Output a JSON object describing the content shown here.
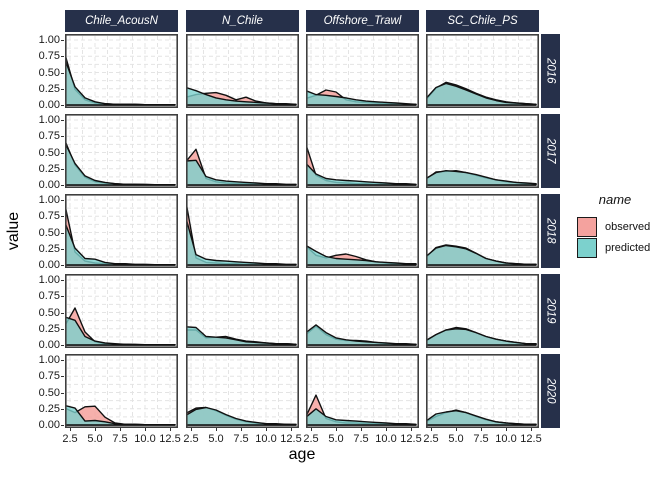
{
  "chart_data": {
    "type": "area",
    "title": "",
    "xlabel": "age",
    "ylabel": "value",
    "facet_cols": [
      "Chile_AcousN",
      "N_Chile",
      "Offshore_Trawl",
      "SC_Chile_PS"
    ],
    "facet_rows": [
      "2016",
      "2017",
      "2018",
      "2019",
      "2020"
    ],
    "x_tick_labels": [
      "2.5",
      "5.0",
      "7.5",
      "10.0",
      "12.5"
    ],
    "x_tick_values": [
      2.5,
      5.0,
      7.5,
      10.0,
      12.5
    ],
    "y_tick_labels": [
      "0.00",
      "0.25",
      "0.50",
      "0.75",
      "1.00"
    ],
    "y_tick_values": [
      0,
      0.25,
      0.5,
      0.75,
      1.0
    ],
    "xlim": [
      2,
      13.1
    ],
    "ylim": [
      0,
      1.0
    ],
    "grid": {
      "style": "dashed",
      "major_and_minor": true
    },
    "legend": {
      "title": "name",
      "position": "right",
      "entries": [
        {
          "label": "observed",
          "color": "#F4A29E"
        },
        {
          "label": "predicted",
          "color": "#7CD1CD"
        }
      ]
    },
    "colors": {
      "strip_bg": "#26304A",
      "strip_text": "#FFFFFF",
      "panel_border": "#3F3F3F",
      "grid_line": "#E4E4E4",
      "outline": "#111111"
    },
    "ages": [
      2,
      3,
      4,
      5,
      6,
      7,
      8,
      9,
      10,
      11,
      12,
      13
    ],
    "panels": [
      {
        "row": "2016",
        "col": "Chile_AcousN",
        "observed": [
          0.78,
          0.24,
          0.08,
          0.03,
          0.02,
          0.01,
          0.01,
          0.01,
          0.005,
          0.005,
          0.005,
          0.005
        ],
        "predicted": [
          0.7,
          0.28,
          0.11,
          0.05,
          0.02,
          0.01,
          0.01,
          0.01,
          0.005,
          0.005,
          0.005,
          0.005
        ]
      },
      {
        "row": "2016",
        "col": "N_Chile",
        "observed": [
          0.12,
          0.16,
          0.18,
          0.19,
          0.15,
          0.08,
          0.12,
          0.06,
          0.03,
          0.02,
          0.01,
          0.01
        ],
        "predicted": [
          0.27,
          0.22,
          0.16,
          0.11,
          0.08,
          0.06,
          0.05,
          0.04,
          0.03,
          0.02,
          0.02,
          0.01
        ]
      },
      {
        "row": "2016",
        "col": "Offshore_Trawl",
        "observed": [
          0.1,
          0.15,
          0.23,
          0.2,
          0.08,
          0.05,
          0.04,
          0.03,
          0.02,
          0.02,
          0.01,
          0.01
        ],
        "predicted": [
          0.22,
          0.16,
          0.15,
          0.13,
          0.11,
          0.08,
          0.06,
          0.05,
          0.04,
          0.03,
          0.02,
          0.01
        ]
      },
      {
        "row": "2016",
        "col": "SC_Chile_PS",
        "observed": [
          0.08,
          0.26,
          0.35,
          0.31,
          0.25,
          0.18,
          0.12,
          0.08,
          0.05,
          0.03,
          0.02,
          0.01
        ],
        "predicted": [
          0.1,
          0.27,
          0.33,
          0.29,
          0.23,
          0.17,
          0.11,
          0.07,
          0.04,
          0.03,
          0.02,
          0.01
        ]
      },
      {
        "row": "2017",
        "col": "Chile_AcousN",
        "observed": [
          0.68,
          0.31,
          0.12,
          0.05,
          0.03,
          0.02,
          0.01,
          0.01,
          0.005,
          0.005,
          0.005,
          0.005
        ],
        "predicted": [
          0.65,
          0.33,
          0.14,
          0.07,
          0.04,
          0.02,
          0.01,
          0.01,
          0.01,
          0.005,
          0.005,
          0.005
        ]
      },
      {
        "row": "2017",
        "col": "N_Chile",
        "observed": [
          0.36,
          0.55,
          0.1,
          0.05,
          0.03,
          0.02,
          0.02,
          0.01,
          0.01,
          0.01,
          0.005,
          0.005
        ],
        "predicted": [
          0.37,
          0.38,
          0.13,
          0.08,
          0.06,
          0.05,
          0.04,
          0.03,
          0.02,
          0.02,
          0.01,
          0.01
        ]
      },
      {
        "row": "2017",
        "col": "Offshore_Trawl",
        "observed": [
          0.62,
          0.15,
          0.07,
          0.04,
          0.03,
          0.02,
          0.02,
          0.01,
          0.01,
          0.01,
          0.005,
          0.005
        ],
        "predicted": [
          0.33,
          0.17,
          0.1,
          0.08,
          0.07,
          0.06,
          0.05,
          0.04,
          0.03,
          0.02,
          0.02,
          0.01
        ]
      },
      {
        "row": "2017",
        "col": "SC_Chile_PS",
        "observed": [
          0.09,
          0.2,
          0.21,
          0.22,
          0.19,
          0.15,
          0.11,
          0.08,
          0.05,
          0.04,
          0.02,
          0.02
        ],
        "predicted": [
          0.1,
          0.19,
          0.22,
          0.21,
          0.19,
          0.16,
          0.12,
          0.08,
          0.06,
          0.04,
          0.03,
          0.02
        ]
      },
      {
        "row": "2018",
        "col": "Chile_AcousN",
        "observed": [
          0.92,
          0.2,
          0.06,
          0.03,
          0.02,
          0.01,
          0.01,
          0.005,
          0.005,
          0.005,
          0.005,
          0.005
        ],
        "predicted": [
          0.65,
          0.26,
          0.1,
          0.09,
          0.04,
          0.02,
          0.02,
          0.01,
          0.01,
          0.005,
          0.005,
          0.005
        ]
      },
      {
        "row": "2018",
        "col": "N_Chile",
        "observed": [
          0.97,
          0.11,
          0.04,
          0.03,
          0.02,
          0.02,
          0.01,
          0.01,
          0.01,
          0.005,
          0.005,
          0.005
        ],
        "predicted": [
          0.72,
          0.16,
          0.09,
          0.07,
          0.06,
          0.05,
          0.04,
          0.03,
          0.02,
          0.02,
          0.01,
          0.01
        ]
      },
      {
        "row": "2018",
        "col": "Offshore_Trawl",
        "observed": [
          0.29,
          0.15,
          0.11,
          0.15,
          0.17,
          0.13,
          0.08,
          0.05,
          0.03,
          0.02,
          0.02,
          0.01
        ],
        "predicted": [
          0.3,
          0.21,
          0.13,
          0.1,
          0.09,
          0.08,
          0.07,
          0.05,
          0.04,
          0.03,
          0.02,
          0.02
        ]
      },
      {
        "row": "2018",
        "col": "SC_Chile_PS",
        "observed": [
          0.12,
          0.27,
          0.31,
          0.29,
          0.26,
          0.18,
          0.1,
          0.06,
          0.03,
          0.02,
          0.01,
          0.01
        ],
        "predicted": [
          0.13,
          0.26,
          0.3,
          0.28,
          0.25,
          0.18,
          0.1,
          0.06,
          0.03,
          0.02,
          0.01,
          0.01
        ]
      },
      {
        "row": "2019",
        "col": "Chile_AcousN",
        "observed": [
          0.3,
          0.57,
          0.2,
          0.05,
          0.02,
          0.01,
          0.01,
          0.005,
          0.005,
          0.005,
          0.005,
          0.005
        ],
        "predicted": [
          0.43,
          0.38,
          0.13,
          0.06,
          0.03,
          0.02,
          0.01,
          0.01,
          0.005,
          0.005,
          0.005,
          0.005
        ]
      },
      {
        "row": "2019",
        "col": "N_Chile",
        "observed": [
          0.23,
          0.23,
          0.11,
          0.12,
          0.13,
          0.09,
          0.06,
          0.05,
          0.03,
          0.02,
          0.02,
          0.01
        ],
        "predicted": [
          0.28,
          0.27,
          0.13,
          0.12,
          0.11,
          0.08,
          0.05,
          0.04,
          0.03,
          0.02,
          0.02,
          0.01
        ]
      },
      {
        "row": "2019",
        "col": "Offshore_Trawl",
        "observed": [
          0.16,
          0.29,
          0.16,
          0.09,
          0.07,
          0.07,
          0.06,
          0.04,
          0.02,
          0.02,
          0.01,
          0.01
        ],
        "predicted": [
          0.19,
          0.31,
          0.19,
          0.11,
          0.08,
          0.06,
          0.05,
          0.04,
          0.03,
          0.02,
          0.02,
          0.01
        ]
      },
      {
        "row": "2019",
        "col": "SC_Chile_PS",
        "observed": [
          0.06,
          0.16,
          0.23,
          0.27,
          0.25,
          0.19,
          0.13,
          0.09,
          0.06,
          0.04,
          0.02,
          0.02
        ],
        "predicted": [
          0.07,
          0.16,
          0.23,
          0.25,
          0.24,
          0.19,
          0.13,
          0.09,
          0.06,
          0.04,
          0.02,
          0.02
        ]
      },
      {
        "row": "2020",
        "col": "Chile_AcousN",
        "observed": [
          0.26,
          0.19,
          0.28,
          0.29,
          0.12,
          0.03,
          0.01,
          0.01,
          0.005,
          0.005,
          0.005,
          0.005
        ],
        "predicted": [
          0.3,
          0.26,
          0.06,
          0.07,
          0.05,
          0.02,
          0.01,
          0.01,
          0.005,
          0.005,
          0.005,
          0.005
        ]
      },
      {
        "row": "2020",
        "col": "N_Chile",
        "observed": [
          0.18,
          0.26,
          0.27,
          0.22,
          0.15,
          0.09,
          0.05,
          0.03,
          0.02,
          0.01,
          0.01,
          0.005
        ],
        "predicted": [
          0.15,
          0.24,
          0.27,
          0.23,
          0.16,
          0.1,
          0.06,
          0.04,
          0.02,
          0.02,
          0.01,
          0.01
        ]
      },
      {
        "row": "2020",
        "col": "Offshore_Trawl",
        "observed": [
          0.13,
          0.46,
          0.1,
          0.05,
          0.03,
          0.03,
          0.02,
          0.02,
          0.01,
          0.01,
          0.01,
          0.005
        ],
        "predicted": [
          0.12,
          0.25,
          0.13,
          0.08,
          0.07,
          0.06,
          0.05,
          0.04,
          0.03,
          0.02,
          0.02,
          0.01
        ]
      },
      {
        "row": "2020",
        "col": "SC_Chile_PS",
        "observed": [
          0.05,
          0.13,
          0.19,
          0.23,
          0.19,
          0.13,
          0.08,
          0.05,
          0.03,
          0.02,
          0.01,
          0.01
        ],
        "predicted": [
          0.06,
          0.17,
          0.2,
          0.22,
          0.19,
          0.14,
          0.09,
          0.05,
          0.03,
          0.02,
          0.01,
          0.01
        ]
      }
    ]
  }
}
